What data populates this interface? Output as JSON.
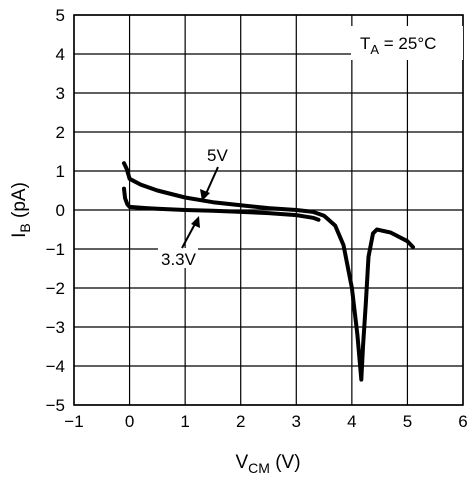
{
  "chart_data": {
    "type": "line",
    "xlim": [
      -1,
      6
    ],
    "ylim": [
      -5,
      5
    ],
    "xticks": [
      -1,
      0,
      1,
      2,
      3,
      4,
      5,
      6
    ],
    "yticks": [
      -5,
      -4,
      -3,
      -2,
      -1,
      0,
      1,
      2,
      3,
      4,
      5
    ],
    "grid": true,
    "xlabel": {
      "main": "V",
      "sub": "CM",
      "rest": " (V)"
    },
    "ylabel": {
      "main": "I",
      "sub": "B",
      "rest": " (pA)"
    },
    "annotation_box": {
      "main": "T",
      "sub": "A",
      "rest": " = 25°C"
    },
    "series": [
      {
        "name": "5V",
        "points": [
          [
            -0.1,
            1.2
          ],
          [
            -0.05,
            1.05
          ],
          [
            0.0,
            0.8
          ],
          [
            0.2,
            0.65
          ],
          [
            0.5,
            0.5
          ],
          [
            1.0,
            0.32
          ],
          [
            1.5,
            0.2
          ],
          [
            2.0,
            0.12
          ],
          [
            2.5,
            0.05
          ],
          [
            3.0,
            0.0
          ],
          [
            3.3,
            -0.05
          ],
          [
            3.5,
            -0.15
          ],
          [
            3.7,
            -0.4
          ],
          [
            3.85,
            -0.9
          ],
          [
            4.0,
            -2.0
          ],
          [
            4.1,
            -3.2
          ],
          [
            4.17,
            -4.35
          ],
          [
            4.2,
            -3.5
          ],
          [
            4.25,
            -2.4
          ],
          [
            4.3,
            -1.2
          ],
          [
            4.38,
            -0.6
          ],
          [
            4.45,
            -0.5
          ],
          [
            4.7,
            -0.58
          ],
          [
            5.0,
            -0.8
          ],
          [
            5.1,
            -0.95
          ]
        ]
      },
      {
        "name": "3.3V",
        "points": [
          [
            -0.1,
            0.55
          ],
          [
            -0.08,
            0.3
          ],
          [
            -0.04,
            0.15
          ],
          [
            0.0,
            0.08
          ],
          [
            0.3,
            0.05
          ],
          [
            0.5,
            0.03
          ],
          [
            1.0,
            0.0
          ],
          [
            1.5,
            -0.02
          ],
          [
            2.0,
            -0.05
          ],
          [
            2.5,
            -0.08
          ],
          [
            3.0,
            -0.13
          ],
          [
            3.3,
            -0.2
          ],
          [
            3.4,
            -0.25
          ]
        ]
      }
    ],
    "labels": [
      {
        "text": "5V",
        "series": "5V"
      },
      {
        "text": "3.3V",
        "series": "3.3V"
      }
    ]
  }
}
